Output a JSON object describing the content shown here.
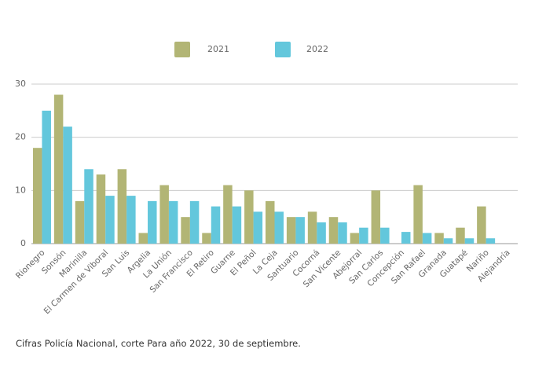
{
  "chart_data": {
    "type": "bar",
    "categories": [
      "Rionegro",
      "Sonsón",
      "Marinilla",
      "El Carmen de Viboral",
      "San Luis",
      "Argelia",
      "La Unión",
      "San Francisco",
      "El Retiro",
      "Guarne",
      "El Peñol",
      "La Ceja",
      "Santuario",
      "Cocorná",
      "San Vicente",
      "Abejorral",
      "San Carlos",
      "Concepción",
      "San Rafael",
      "Granada",
      "Guatapé",
      "Nariño",
      "Alejandría"
    ],
    "series": [
      {
        "name": "2021",
        "color": "#b2b575",
        "values": [
          18,
          28,
          8,
          13,
          14,
          2,
          11,
          5,
          2,
          11,
          10,
          8,
          5,
          6,
          5,
          2,
          10,
          0,
          11,
          2,
          3,
          7,
          0
        ]
      },
      {
        "name": "2022",
        "color": "#63c7dc",
        "values": [
          25,
          22,
          14,
          9,
          9,
          8,
          8,
          8,
          7,
          7,
          6,
          6,
          5,
          4,
          4,
          3,
          3,
          2.2,
          2,
          1,
          1,
          1,
          0
        ]
      }
    ],
    "yticks": [
      0,
      10,
      20,
      30
    ],
    "ylim": [
      0,
      30
    ],
    "grid": true,
    "legend": "top-center"
  },
  "footer": "Cifras Policía Nacional, corte Para año 2022, 30 de septiembre."
}
